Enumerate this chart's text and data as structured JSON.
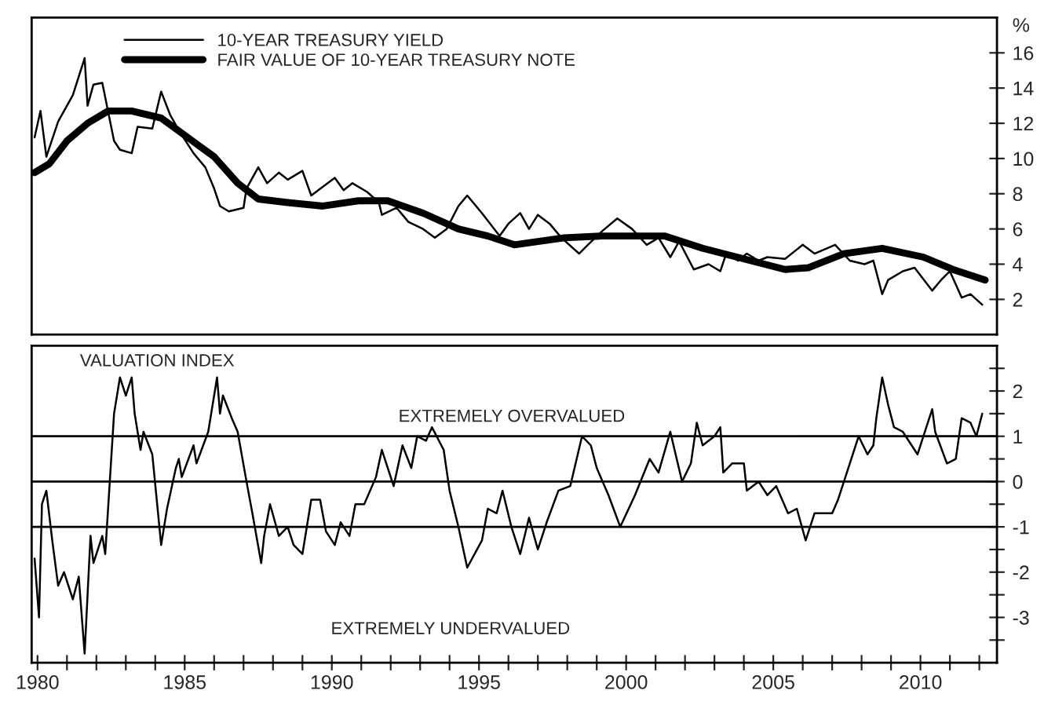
{
  "chart_data": [
    {
      "type": "line",
      "xlim": [
        1979.8,
        2012.6
      ],
      "ylim": [
        0,
        18
      ],
      "yticks": [
        2,
        4,
        6,
        8,
        10,
        12,
        14,
        16
      ],
      "ylabel": "%",
      "legend": "top left",
      "tick_labels": "y",
      "series": [
        {
          "name": "10-YEAR TREASURY YIELD",
          "color": "#000000",
          "x": [
            1979.9,
            1980.1,
            1980.3,
            1980.7,
            1981.2,
            1981.6,
            1981.7,
            1981.9,
            1982.2,
            1982.6,
            1982.8,
            1983.2,
            1983.4,
            1983.9,
            1984.2,
            1984.5,
            1984.8,
            1985.3,
            1985.7,
            1986.0,
            1986.2,
            1986.5,
            1987.0,
            1987.1,
            1987.5,
            1987.8,
            1988.2,
            1988.5,
            1989.0,
            1989.3,
            1990.1,
            1990.4,
            1990.7,
            1991.2,
            1991.6,
            1991.7,
            1992.2,
            1992.6,
            1993.1,
            1993.5,
            1993.9,
            1994.3,
            1994.6,
            1995.1,
            1995.7,
            1996.0,
            1996.4,
            1996.7,
            1997.0,
            1997.4,
            1997.8,
            1998.4,
            1998.7,
            1999.2,
            1999.7,
            2000.2,
            2000.7,
            2001.1,
            2001.5,
            2001.8,
            2002.3,
            2002.8,
            2003.2,
            2003.4,
            2003.8,
            2004.1,
            2004.5,
            2004.8,
            2005.4,
            2006.0,
            2006.4,
            2007.1,
            2007.6,
            2008.1,
            2008.4,
            2008.7,
            2008.9,
            2009.4,
            2009.8,
            2010.4,
            2010.7,
            2011.0,
            2011.4,
            2011.7,
            2012.1
          ],
          "values": [
            11.2,
            12.7,
            10.1,
            12.1,
            13.6,
            15.7,
            13.0,
            14.2,
            14.3,
            11.0,
            10.5,
            10.3,
            11.8,
            11.7,
            13.8,
            12.5,
            11.6,
            10.3,
            9.5,
            8.3,
            7.3,
            7.0,
            7.2,
            8.3,
            9.5,
            8.6,
            9.2,
            8.8,
            9.3,
            7.9,
            8.9,
            8.2,
            8.6,
            8.1,
            7.5,
            6.8,
            7.2,
            6.4,
            6.0,
            5.5,
            6.0,
            7.3,
            7.9,
            6.9,
            5.6,
            6.3,
            6.9,
            6.0,
            6.8,
            6.3,
            5.5,
            4.6,
            5.1,
            5.9,
            6.6,
            6.0,
            5.1,
            5.5,
            4.4,
            5.3,
            3.7,
            4.0,
            3.6,
            4.6,
            4.2,
            4.6,
            4.2,
            4.4,
            4.3,
            5.1,
            4.6,
            5.1,
            4.2,
            4.0,
            4.2,
            2.3,
            3.1,
            3.6,
            3.8,
            2.5,
            3.1,
            3.6,
            2.1,
            2.3,
            1.7
          ]
        },
        {
          "name": "FAIR VALUE OF 10-YEAR TREASURY NOTE",
          "color": "#000000",
          "x": [
            1979.9,
            1980.4,
            1981.0,
            1981.7,
            1982.4,
            1983.2,
            1984.2,
            1985.1,
            1986.0,
            1986.8,
            1987.5,
            1988.5,
            1989.7,
            1990.9,
            1991.9,
            1993.1,
            1994.3,
            1995.3,
            1996.2,
            1997.9,
            1999.2,
            2001.3,
            2002.6,
            2004.0,
            2005.4,
            2006.2,
            2007.4,
            2008.7,
            2010.1,
            2011.1,
            2012.2
          ],
          "values": [
            9.2,
            9.7,
            11.0,
            12.0,
            12.7,
            12.7,
            12.3,
            11.2,
            10.1,
            8.6,
            7.7,
            7.5,
            7.3,
            7.6,
            7.6,
            6.9,
            6.0,
            5.6,
            5.1,
            5.5,
            5.6,
            5.6,
            4.9,
            4.3,
            3.7,
            3.8,
            4.6,
            4.9,
            4.4,
            3.7,
            3.1
          ]
        }
      ]
    },
    {
      "type": "line",
      "xlim": [
        1979.8,
        2012.6
      ],
      "ylim": [
        -4,
        3
      ],
      "xticks": [
        1980,
        {
          "value": 1981,
          "label": null
        },
        {
          "value": 1982,
          "label": null
        },
        {
          "value": 1983,
          "label": null
        },
        {
          "value": 1984,
          "label": null
        },
        1985,
        {
          "value": 1986,
          "label": null
        },
        {
          "value": 1987,
          "label": null
        },
        {
          "value": 1988,
          "label": null
        },
        {
          "value": 1989,
          "label": null
        },
        1990,
        {
          "value": 1991,
          "label": null
        },
        {
          "value": 1992,
          "label": null
        },
        {
          "value": 1993,
          "label": null
        },
        {
          "value": 1994,
          "label": null
        },
        1995,
        {
          "value": 1996,
          "label": null
        },
        {
          "value": 1997,
          "label": null
        },
        {
          "value": 1998,
          "label": null
        },
        {
          "value": 1999,
          "label": null
        },
        2000,
        {
          "value": 2001,
          "label": null
        },
        {
          "value": 2002,
          "label": null
        },
        {
          "value": 2003,
          "label": null
        },
        {
          "value": 2004,
          "label": null
        },
        2005,
        {
          "value": 2006,
          "label": null
        },
        {
          "value": 2007,
          "label": null
        },
        {
          "value": 2008,
          "label": null
        },
        {
          "value": 2009,
          "label": null
        },
        2010,
        {
          "value": 2011,
          "label": null
        },
        {
          "value": 2012,
          "label": null
        }
      ],
      "yticks": [
        {
          "value": 2.5,
          "label": null
        },
        2,
        {
          "value": 1.5,
          "label": null
        },
        1,
        {
          "value": 0.5,
          "label": null
        },
        0,
        {
          "value": -0.5,
          "label": null
        },
        -1,
        {
          "value": -1.5,
          "label": null
        },
        -2,
        {
          "value": -2.5,
          "label": null
        },
        -3,
        {
          "value": -3.5,
          "label": null
        }
      ],
      "ref_lines": [
        {
          "axis": "y",
          "value": 1,
          "color": "#000000"
        },
        {
          "axis": "y",
          "value": 0,
          "color": "#000000"
        },
        {
          "axis": "y",
          "value": -1,
          "color": "#000000"
        }
      ],
      "annotations": [
        "VALUATION INDEX",
        "EXTREMELY OVERVALUED",
        "EXTREMELY UNDERVALUED"
      ],
      "series": [
        {
          "color": "#000000",
          "x": [
            1979.9,
            1980.05,
            1980.15,
            1980.3,
            1980.5,
            1980.7,
            1980.9,
            1981.2,
            1981.4,
            1981.6,
            1981.8,
            1981.9,
            1982.2,
            1982.3,
            1982.6,
            1982.8,
            1983.0,
            1983.2,
            1983.3,
            1983.5,
            1983.6,
            1983.9,
            1984.2,
            1984.4,
            1984.7,
            1984.8,
            1984.9,
            1985.3,
            1985.4,
            1985.8,
            1986.1,
            1986.2,
            1986.3,
            1986.6,
            1986.8,
            1987.1,
            1987.3,
            1987.6,
            1987.7,
            1987.9,
            1988.2,
            1988.5,
            1988.7,
            1989.0,
            1989.3,
            1989.6,
            1989.8,
            1990.1,
            1990.3,
            1990.6,
            1990.8,
            1991.1,
            1991.5,
            1991.7,
            1992.1,
            1992.4,
            1992.7,
            1992.9,
            1993.2,
            1993.4,
            1993.8,
            1994.0,
            1994.3,
            1994.6,
            1995.1,
            1995.3,
            1995.6,
            1995.8,
            1996.1,
            1996.4,
            1996.7,
            1997.0,
            1997.3,
            1997.7,
            1998.1,
            1998.5,
            1998.8,
            1999.0,
            1999.4,
            1999.8,
            2000.3,
            2000.8,
            2001.1,
            2001.5,
            2001.9,
            2002.2,
            2002.4,
            2002.6,
            2003.0,
            2003.2,
            2003.3,
            2003.6,
            2004.0,
            2004.1,
            2004.5,
            2004.8,
            2005.1,
            2005.5,
            2005.8,
            2006.1,
            2006.4,
            2007.0,
            2007.2,
            2007.6,
            2007.9,
            2008.2,
            2008.4,
            2008.5,
            2008.7,
            2008.9,
            2009.1,
            2009.4,
            2009.7,
            2009.9,
            2010.1,
            2010.4,
            2010.5,
            2010.9,
            2011.2,
            2011.4,
            2011.7,
            2011.9,
            2012.1
          ],
          "values": [
            -1.7,
            -3.0,
            -0.5,
            -0.2,
            -1.3,
            -2.3,
            -2.0,
            -2.6,
            -2.1,
            -3.8,
            -1.2,
            -1.8,
            -1.2,
            -1.6,
            1.5,
            2.3,
            1.9,
            2.3,
            1.5,
            0.7,
            1.1,
            0.6,
            -1.4,
            -0.6,
            0.3,
            0.5,
            0.1,
            0.8,
            0.4,
            1.1,
            2.3,
            1.5,
            1.9,
            1.4,
            1.1,
            0.0,
            -0.7,
            -1.8,
            -1.2,
            -0.5,
            -1.2,
            -1.0,
            -1.4,
            -1.6,
            -0.4,
            -0.4,
            -1.1,
            -1.4,
            -0.9,
            -1.2,
            -0.5,
            -0.5,
            0.1,
            0.7,
            -0.1,
            0.8,
            0.3,
            1.0,
            0.9,
            1.2,
            0.7,
            -0.2,
            -1.0,
            -1.9,
            -1.3,
            -0.6,
            -0.7,
            -0.2,
            -1.0,
            -1.6,
            -0.8,
            -1.5,
            -0.9,
            -0.2,
            -0.1,
            1.0,
            0.8,
            0.3,
            -0.3,
            -1.0,
            -0.3,
            0.5,
            0.2,
            1.1,
            0.0,
            0.4,
            1.3,
            0.8,
            1.0,
            1.2,
            0.2,
            0.4,
            0.4,
            -0.2,
            0.0,
            -0.3,
            -0.1,
            -0.7,
            -0.6,
            -1.3,
            -0.7,
            -0.7,
            -0.4,
            0.4,
            1.0,
            0.6,
            0.8,
            1.4,
            2.3,
            1.7,
            1.2,
            1.1,
            0.8,
            0.6,
            1.0,
            1.6,
            1.1,
            0.4,
            0.5,
            1.4,
            1.3,
            1.0,
            1.5
          ]
        }
      ]
    }
  ]
}
